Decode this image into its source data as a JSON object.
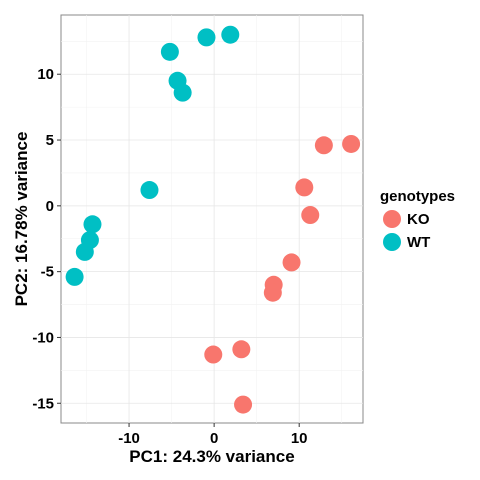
{
  "chart_data": {
    "type": "scatter",
    "xlabel": "PC1: 24.3% variance",
    "ylabel": "PC2: 16.78% variance",
    "xlim": [
      -18,
      17.5
    ],
    "ylim": [
      -16.5,
      14.5
    ],
    "x_ticks": [
      -10,
      0,
      10
    ],
    "y_ticks": [
      -15,
      -10,
      -5,
      0,
      5,
      10
    ],
    "grid": true,
    "legend": {
      "title": "genotypes",
      "position": "right",
      "entries": [
        {
          "label": "KO",
          "color": "#F8766D"
        },
        {
          "label": "WT",
          "color": "#00BFC4"
        }
      ]
    },
    "series": [
      {
        "name": "KO",
        "color": "#F8766D",
        "points": [
          {
            "x": 16.1,
            "y": 4.7
          },
          {
            "x": 12.9,
            "y": 4.6
          },
          {
            "x": 10.6,
            "y": 1.4
          },
          {
            "x": 11.3,
            "y": -0.7
          },
          {
            "x": 9.1,
            "y": -4.3
          },
          {
            "x": 7.0,
            "y": -6.0
          },
          {
            "x": 6.9,
            "y": -6.6
          },
          {
            "x": 3.2,
            "y": -10.9
          },
          {
            "x": -0.1,
            "y": -11.3
          },
          {
            "x": 3.4,
            "y": -15.1
          }
        ]
      },
      {
        "name": "WT",
        "color": "#00BFC4",
        "points": [
          {
            "x": 1.9,
            "y": 13.0
          },
          {
            "x": -0.9,
            "y": 12.8
          },
          {
            "x": -5.2,
            "y": 11.7
          },
          {
            "x": -4.3,
            "y": 9.5
          },
          {
            "x": -3.7,
            "y": 8.6
          },
          {
            "x": -7.6,
            "y": 1.2
          },
          {
            "x": -14.3,
            "y": -1.4
          },
          {
            "x": -14.6,
            "y": -2.6
          },
          {
            "x": -15.2,
            "y": -3.5
          },
          {
            "x": -16.4,
            "y": -5.4
          }
        ]
      }
    ]
  }
}
